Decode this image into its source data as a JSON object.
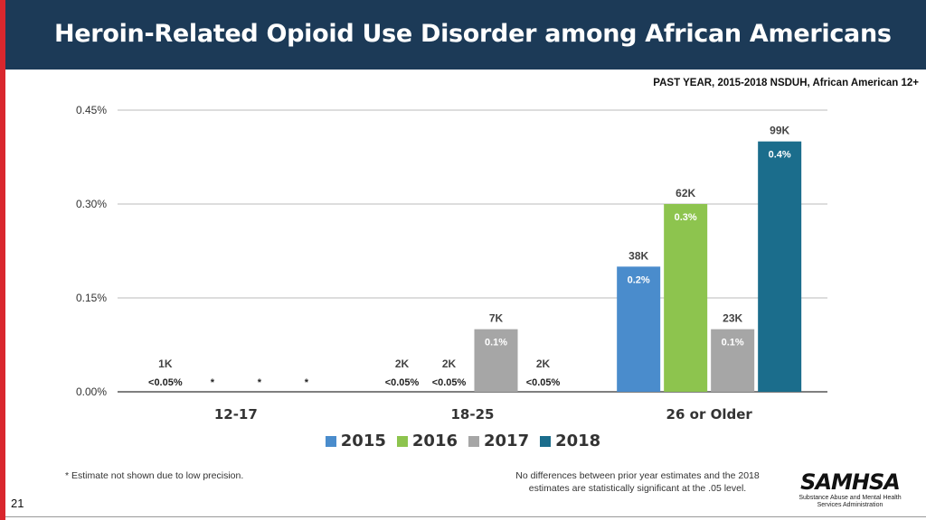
{
  "header": {
    "title": "Heroin-Related Opioid Use Disorder among African Americans"
  },
  "subtitle": "PAST YEAR, 2015-2018 NSDUH, African American 12+",
  "chart_data": {
    "type": "bar",
    "title": "Heroin-Related Opioid Use Disorder among African Americans",
    "categories": [
      "12-17",
      "18-25",
      "26 or Older"
    ],
    "ylim": [
      0,
      0.45
    ],
    "yticks": [
      "0.00%",
      "0.15%",
      "0.30%",
      "0.45%"
    ],
    "ytick_values": [
      0,
      0.15,
      0.3,
      0.45
    ],
    "series": [
      {
        "name": "2015",
        "color": "#4a8ccc",
        "values": [
          0.005,
          0.005,
          0.2
        ],
        "pct_labels": [
          "<0.05%",
          "<0.05%",
          "0.2%"
        ],
        "count_labels": [
          "1K",
          "2K",
          "38K"
        ]
      },
      {
        "name": "2016",
        "color": "#8dc44e",
        "values": [
          null,
          0.005,
          0.3
        ],
        "pct_labels": [
          "*",
          "<0.05%",
          "0.3%"
        ],
        "count_labels": [
          "",
          "2K",
          "62K"
        ]
      },
      {
        "name": "2017",
        "color": "#a6a6a6",
        "values": [
          null,
          0.1,
          0.1
        ],
        "pct_labels": [
          "*",
          "0.1%",
          "0.1%"
        ],
        "count_labels": [
          "",
          "7K",
          "23K"
        ]
      },
      {
        "name": "2018",
        "color": "#1b6d8c",
        "values": [
          null,
          0.005,
          0.4
        ],
        "pct_labels": [
          "*",
          "<0.05%",
          "0.4%"
        ],
        "count_labels": [
          "",
          "2K",
          "99K"
        ]
      }
    ],
    "legend_position": "bottom"
  },
  "footnote": "* Estimate not shown due to low precision.",
  "note": "No differences between prior year estimates and the 2018 estimates are statistically significant at the .05 level.",
  "logo": {
    "name": "SAMHSA",
    "subtext": "Substance Abuse and Mental Health Services Administration"
  },
  "page_number": "21"
}
